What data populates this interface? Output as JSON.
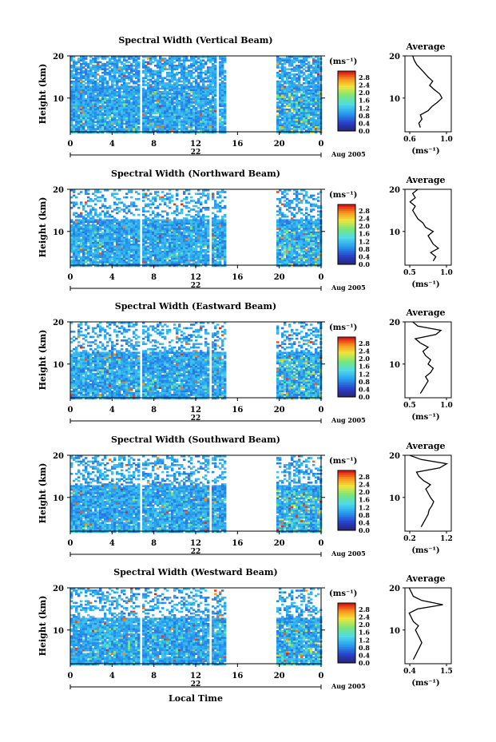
{
  "figure": {
    "xlabel_bottom": "Local Time",
    "date_label": "Aug 2005",
    "day_label": "22",
    "height_label": "Height (km)",
    "unit_label": "(ms⁻¹)",
    "avg_unit_label": "(ms⁻¹)",
    "avg_title": "Average"
  },
  "chart_data": [
    {
      "type": "heatmap",
      "title": "Spectral Width (Vertical Beam)",
      "xlabel": "",
      "ylabel": "Height (km)",
      "x_ticks": [
        "0",
        "4",
        "8",
        "12",
        "16",
        "20",
        "0"
      ],
      "xlim": [
        0,
        24
      ],
      "ylim": [
        2,
        20
      ],
      "y_ticks": [
        "10",
        "20"
      ],
      "gaps_hours": [
        [
          6.5,
          6.8
        ],
        [
          13.8,
          14.0
        ],
        [
          14.8,
          19.7
        ]
      ],
      "colorbar": {
        "label": "(ms⁻¹)",
        "ticks": [
          "2.8",
          "2.4",
          "2.0",
          "1.6",
          "1.2",
          "0.8",
          "0.4",
          "0.0"
        ],
        "range": [
          0,
          3.0
        ]
      },
      "average_profile": {
        "title": "Average",
        "xlabel": "(ms⁻¹)",
        "x_ticks": [
          "0.6",
          "1.0"
        ],
        "xlim": [
          0.5,
          1.1
        ],
        "heights": [
          3,
          4,
          5,
          6,
          7,
          8,
          9,
          10,
          11,
          12,
          13,
          14,
          15,
          16,
          17,
          18,
          19,
          20
        ],
        "values": [
          0.7,
          0.68,
          0.72,
          0.7,
          0.8,
          0.85,
          0.92,
          0.98,
          0.95,
          0.88,
          0.82,
          0.86,
          0.8,
          0.75,
          0.7,
          0.65,
          0.62,
          0.6
        ]
      }
    },
    {
      "type": "heatmap",
      "title": "Spectral Width (Northward Beam)",
      "xlabel": "",
      "ylabel": "Height (km)",
      "x_ticks": [
        "0",
        "4",
        "8",
        "12",
        "16",
        "20",
        "0"
      ],
      "xlim": [
        0,
        24
      ],
      "ylim": [
        2,
        20
      ],
      "y_ticks": [
        "10",
        "20"
      ],
      "gaps_hours": [
        [
          6.5,
          6.8
        ],
        [
          13.2,
          13.5
        ],
        [
          14.8,
          19.7
        ]
      ],
      "colorbar": {
        "label": "(ms⁻¹)",
        "ticks": [
          "2.8",
          "2.4",
          "2.0",
          "1.6",
          "1.2",
          "0.8",
          "0.4",
          "0.0"
        ],
        "range": [
          0,
          3.0
        ]
      },
      "average_profile": {
        "title": "Average",
        "xlabel": "(ms⁻¹)",
        "x_ticks": [
          "0.5",
          "1.0"
        ],
        "xlim": [
          0.3,
          1.2
        ],
        "heights": [
          3,
          4,
          5,
          6,
          7,
          8,
          9,
          10,
          11,
          12,
          13,
          14,
          15,
          16,
          17,
          18,
          19,
          20
        ],
        "values": [
          0.85,
          0.9,
          0.8,
          0.95,
          0.85,
          0.8,
          0.75,
          0.85,
          0.7,
          0.65,
          0.55,
          0.5,
          0.45,
          0.5,
          0.4,
          0.5,
          0.45,
          0.55
        ]
      }
    },
    {
      "type": "heatmap",
      "title": "Spectral Width (Eastward Beam)",
      "xlabel": "",
      "ylabel": "Height (km)",
      "x_ticks": [
        "0",
        "4",
        "8",
        "12",
        "16",
        "20",
        "0"
      ],
      "xlim": [
        0,
        24
      ],
      "ylim": [
        2,
        20
      ],
      "y_ticks": [
        "10",
        "20"
      ],
      "gaps_hours": [
        [
          6.5,
          6.8
        ],
        [
          13.2,
          13.5
        ],
        [
          14.8,
          19.7
        ]
      ],
      "colorbar": {
        "label": "(ms⁻¹)",
        "ticks": [
          "2.8",
          "2.4",
          "2.0",
          "1.6",
          "1.2",
          "0.8",
          "0.4",
          "0.0"
        ],
        "range": [
          0,
          3.0
        ]
      },
      "average_profile": {
        "title": "Average",
        "xlabel": "(ms⁻¹)",
        "x_ticks": [
          "0.5",
          "1.0"
        ],
        "xlim": [
          0.3,
          1.2
        ],
        "heights": [
          3,
          4,
          5,
          6,
          7,
          8,
          9,
          10,
          11,
          12,
          13,
          14,
          15,
          16,
          17,
          18,
          19,
          20
        ],
        "values": [
          0.6,
          0.65,
          0.7,
          0.75,
          0.7,
          0.8,
          0.85,
          0.75,
          0.8,
          0.7,
          0.65,
          0.75,
          0.6,
          0.5,
          0.9,
          1.0,
          0.55,
          0.45
        ]
      }
    },
    {
      "type": "heatmap",
      "title": "Spectral Width (Southward Beam)",
      "xlabel": "",
      "ylabel": "Height (km)",
      "x_ticks": [
        "0",
        "4",
        "8",
        "12",
        "16",
        "20",
        "0"
      ],
      "xlim": [
        0,
        24
      ],
      "ylim": [
        2,
        20
      ],
      "y_ticks": [
        "10",
        "20"
      ],
      "gaps_hours": [
        [
          6.5,
          6.8
        ],
        [
          13.2,
          13.5
        ],
        [
          14.8,
          19.7
        ]
      ],
      "colorbar": {
        "label": "(ms⁻¹)",
        "ticks": [
          "2.8",
          "2.4",
          "2.0",
          "1.6",
          "1.2",
          "0.8",
          "0.4",
          "0.0"
        ],
        "range": [
          0,
          3.0
        ]
      },
      "average_profile": {
        "title": "Average",
        "xlabel": "(ms⁻¹)",
        "x_ticks": [
          "0.2",
          "1.2"
        ],
        "xlim": [
          0.2,
          1.2
        ],
        "heights": [
          3,
          4,
          5,
          6,
          7,
          8,
          9,
          10,
          11,
          12,
          13,
          14,
          15,
          16,
          17,
          18,
          19,
          20
        ],
        "values": [
          0.55,
          0.6,
          0.65,
          0.7,
          0.72,
          0.78,
          0.82,
          0.75,
          0.7,
          0.65,
          0.75,
          0.6,
          0.5,
          0.45,
          0.95,
          1.1,
          0.55,
          0.3
        ]
      }
    },
    {
      "type": "heatmap",
      "title": "Spectral Width (Westward Beam)",
      "xlabel": "Local Time",
      "ylabel": "Height (km)",
      "x_ticks": [
        "0",
        "4",
        "8",
        "12",
        "16",
        "20",
        "0"
      ],
      "xlim": [
        0,
        24
      ],
      "ylim": [
        2,
        20
      ],
      "y_ticks": [
        "10",
        "20"
      ],
      "gaps_hours": [
        [
          6.5,
          6.8
        ],
        [
          13.2,
          13.5
        ],
        [
          14.8,
          19.7
        ]
      ],
      "colorbar": {
        "label": "(ms⁻¹)",
        "ticks": [
          "2.8",
          "2.4",
          "2.0",
          "1.6",
          "1.2",
          "0.8",
          "0.4",
          "0.0"
        ],
        "range": [
          0,
          3.0
        ]
      },
      "average_profile": {
        "title": "Average",
        "xlabel": "(ms⁻¹)",
        "x_ticks": [
          "0.4",
          "1.5"
        ],
        "xlim": [
          0.4,
          1.5
        ],
        "heights": [
          3,
          4,
          5,
          6,
          7,
          8,
          9,
          10,
          11,
          12,
          13,
          14,
          15,
          16,
          17,
          18,
          19,
          20
        ],
        "values": [
          0.6,
          0.65,
          0.7,
          0.75,
          0.8,
          0.75,
          0.7,
          0.65,
          0.72,
          0.6,
          0.55,
          0.5,
          0.7,
          1.3,
          0.8,
          0.6,
          0.55,
          0.5
        ]
      }
    }
  ]
}
